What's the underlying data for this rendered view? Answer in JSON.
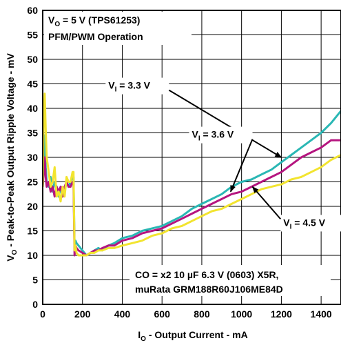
{
  "chart_data": {
    "type": "line",
    "title_lines": [
      "VO = 5 V (TPS61253)",
      "PFM/PWM Operation"
    ],
    "xlabel": "IO - Output Current - mA",
    "ylabel": "VO - Peak-to-Peak Output Ripple Voltage - mV",
    "xlim": [
      0,
      1500
    ],
    "ylim": [
      0,
      60
    ],
    "xticks": [
      0,
      200,
      400,
      600,
      800,
      1000,
      1200,
      1400
    ],
    "yticks": [
      0,
      5,
      10,
      15,
      20,
      25,
      30,
      35,
      40,
      45,
      50,
      55,
      60
    ],
    "grid": true,
    "note_lines": [
      "CO = x2 10 µF 6.3 V (0603) X5R,",
      "muRata GRM188R60J106ME84D"
    ],
    "series": [
      {
        "name": "VI = 3.3 V",
        "color": "#2ab7b4",
        "x": [
          0,
          5,
          10,
          15,
          20,
          30,
          40,
          50,
          60,
          70,
          80,
          90,
          100,
          110,
          120,
          130,
          140,
          150,
          155,
          160,
          165,
          170,
          180,
          200,
          220,
          240,
          260,
          280,
          300,
          330,
          360,
          400,
          450,
          500,
          550,
          600,
          650,
          700,
          750,
          800,
          850,
          900,
          950,
          1000,
          1050,
          1100,
          1150,
          1200,
          1250,
          1300,
          1350,
          1400,
          1450,
          1500
        ],
        "y": [
          24,
          30,
          34.5,
          28,
          25,
          24,
          26,
          23,
          25,
          24,
          22,
          24,
          22,
          23,
          25,
          24,
          25,
          26,
          26,
          12,
          13,
          12.5,
          12,
          11,
          10,
          10.5,
          11,
          11.5,
          11,
          12,
          12.5,
          13.5,
          14,
          15,
          15.5,
          16,
          17,
          18,
          19.5,
          20.5,
          21.5,
          22.5,
          24,
          25,
          25.5,
          26.5,
          27.5,
          29,
          30.5,
          32,
          33.5,
          35,
          37,
          39.5
        ]
      },
      {
        "name": "VI = 3.6 V",
        "color": "#b5157f",
        "x": [
          0,
          5,
          10,
          15,
          20,
          30,
          40,
          50,
          60,
          70,
          80,
          90,
          100,
          110,
          120,
          130,
          140,
          150,
          155,
          160,
          165,
          170,
          180,
          200,
          220,
          240,
          260,
          280,
          300,
          330,
          360,
          400,
          450,
          500,
          550,
          600,
          650,
          700,
          750,
          800,
          850,
          900,
          950,
          1000,
          1050,
          1100,
          1150,
          1200,
          1250,
          1300,
          1350,
          1400,
          1450,
          1500
        ],
        "y": [
          24,
          27,
          30,
          26,
          24,
          25,
          23,
          24,
          22,
          24,
          23,
          24,
          22,
          24,
          25,
          24,
          24,
          25,
          25,
          10,
          12,
          11.5,
          11,
          10.5,
          10,
          10.5,
          11,
          11,
          11.5,
          12,
          12,
          13,
          13.5,
          14.5,
          15,
          15.5,
          16.5,
          17.5,
          18.5,
          19.5,
          20.5,
          21.5,
          22.5,
          23,
          24,
          25,
          26,
          27,
          28.5,
          30,
          31,
          32,
          33.5,
          33.5
        ]
      },
      {
        "name": "VI = 4.5 V",
        "color": "#f2e42f",
        "x": [
          0,
          5,
          10,
          15,
          20,
          30,
          40,
          50,
          60,
          70,
          80,
          90,
          100,
          110,
          120,
          130,
          140,
          150,
          155,
          160,
          165,
          170,
          180,
          200,
          220,
          240,
          260,
          280,
          300,
          330,
          360,
          400,
          450,
          500,
          550,
          600,
          650,
          700,
          750,
          800,
          850,
          900,
          950,
          1000,
          1050,
          1100,
          1150,
          1200,
          1250,
          1300,
          1350,
          1400,
          1450,
          1500
        ],
        "y": [
          24,
          38,
          43,
          36,
          30,
          27,
          24,
          25,
          28,
          22,
          23,
          21,
          24,
          22,
          26,
          25,
          25,
          27,
          27,
          11,
          12,
          10.5,
          10,
          10,
          10,
          10.5,
          10.5,
          11,
          11,
          11.5,
          11.5,
          12,
          12.5,
          13,
          14,
          14.5,
          15.5,
          16,
          17,
          18,
          19,
          19.5,
          20.5,
          21.5,
          22.5,
          23.5,
          24,
          24.5,
          25.5,
          26,
          27,
          28,
          29.5,
          30.5
        ]
      }
    ],
    "annotations": [
      {
        "label": "VI = 3.3 V",
        "main": "V",
        "sub": "I",
        "rest": " = 3.3 V",
        "text_x": 330,
        "text_y": 44,
        "arrow_to_x": 1200,
        "arrow_to_y": 30
      },
      {
        "label": "VI = 3.6 V",
        "main": "V",
        "sub": "I",
        "rest": " = 3.6 V",
        "text_x": 750,
        "text_y": 34,
        "arrow_to_x": 945,
        "arrow_to_y": 23
      },
      {
        "label": "VI = 4.5 V",
        "main": "V",
        "sub": "I",
        "rest": " = 4.5 V",
        "text_x": 1210,
        "text_y": 16,
        "arrow_to_x": 1055,
        "arrow_to_y": 24
      }
    ]
  }
}
